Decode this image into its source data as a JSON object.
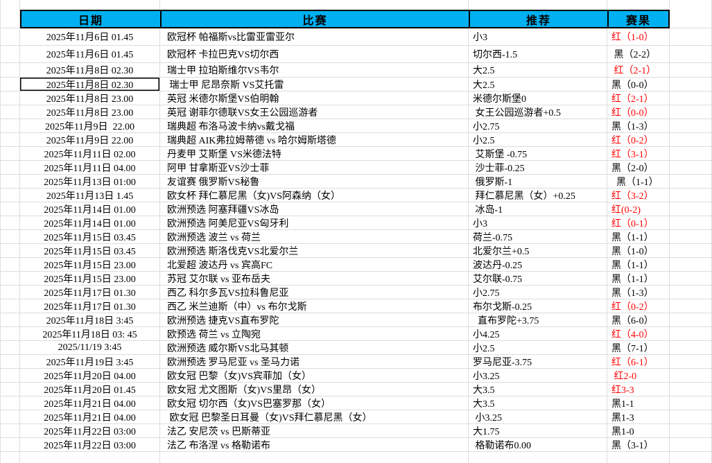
{
  "columns": [
    {
      "key": "date",
      "label": "日期"
    },
    {
      "key": "match",
      "label": "比赛"
    },
    {
      "key": "tip",
      "label": "推荐"
    },
    {
      "key": "result",
      "label": "赛果"
    }
  ],
  "colors": {
    "header_bg": "#00b0f0",
    "win_red": "#ff0000",
    "loss_black": "#000000",
    "gridline": "#dcdcdc"
  },
  "selected_cell": {
    "row": 4,
    "column": "date"
  },
  "rows": [
    {
      "date": "2025年11月6日 01.45",
      "match": "欧冠杯 帕福斯vs比雷亚雷亚尔",
      "tip": "小3",
      "result": "红（1-0）",
      "result_color": "red"
    },
    {
      "date": "2025年11月6日 01.45",
      "match": "欧冠杯 卡拉巴克VS切尔西",
      "tip": "切尔西-1.5",
      "result": " 黑（2-2）",
      "result_color": "black"
    },
    {
      "date": "2025年11月8日 02.30",
      "match": "瑞士甲 拉珀斯维尔VS韦尔",
      "tip": "大2.5",
      "result": " 红（2-1）",
      "result_color": "red"
    },
    {
      "date": "2025年11月8日 02.30",
      "match": " 瑞士甲 尼昂奈斯 VS艾托雷",
      "tip": "大2.5",
      "result": "黑（0-0）",
      "result_color": "black"
    },
    {
      "date": "2025年11月8日 23.00",
      "match": "英冠 米德尔斯堡VS伯明翰",
      "tip": "米德尔斯堡0",
      "result": "红（2-1）",
      "result_color": "red"
    },
    {
      "date": "2025年11月8日 23.00",
      "match": "英冠 谢菲尔德联VS女王公园巡游者",
      "tip": " 女王公园巡游者+0.5",
      "result": "红（0-0）",
      "result_color": "red"
    },
    {
      "date": "2025年11月9日  22.00",
      "match": "瑞典超 布洛马波卡纳vs戴戈福",
      "tip": "小2.75",
      "result": "黑（1-3）",
      "result_color": "black"
    },
    {
      "date": "2025年11月9日 22.00",
      "match": "瑞典超 AIK弗拉姆蒂德 vs 哈尔姆斯塔德",
      "tip": "小2.5",
      "result": "红（0-2）",
      "result_color": "red"
    },
    {
      "date": "2025年11月11日 02.00",
      "match": "丹麦甲 艾斯堡 VS米德法特",
      "tip": " 艾斯堡 -0.75",
      "result": "红（3-1）",
      "result_color": "red"
    },
    {
      "date": "2025年11月11日 04.00",
      "match": "阿甲 甘拿斯亚VS沙士菲",
      "tip": " 沙士菲-0.25",
      "result": "黑（2-0）",
      "result_color": "black"
    },
    {
      "date": "2025年11月13日 01:00",
      "match": "友谊赛 俄罗斯VS秘鲁",
      "tip": " 俄罗斯-1",
      "result": "  黑（1-1）",
      "result_color": "black"
    },
    {
      "date": "2025年11月13日 1.45",
      "match": "欧女杯 拜仁慕尼黑（女)VS阿森纳（女）",
      "tip": " 拜仁慕尼黑（女）+0.25",
      "result": "红（3-2）",
      "result_color": "red"
    },
    {
      "date": "2025年11月14日 01.00",
      "match": "欧洲预选 阿塞拜疆VS冰岛",
      "tip": " 冰岛-1",
      "result": "红(0-2)",
      "result_color": "red"
    },
    {
      "date": "2025年11月14日 01.00",
      "match": "欧洲预选 阿美尼亚VS匈牙利",
      "tip": "小3",
      "result": "红（0-1）",
      "result_color": "red"
    },
    {
      "date": "2025年11月15日 03.45",
      "match": "欧洲预选 波兰 vs 荷兰",
      "tip": "荷兰-0.75",
      "result": "黑（1-1）",
      "result_color": "black"
    },
    {
      "date": "2025年11月15日 03.45",
      "match": "欧洲预选 斯洛伐克VS北爱尔兰",
      "tip": "北爱尔兰+0.5",
      "result": "黑（1-0）",
      "result_color": "black"
    },
    {
      "date": "2025年11月15日 23.00",
      "match": "北爱超 波达丹 vs 宾高FC",
      "tip": "波达丹-0.25",
      "result": "黑（1-1）",
      "result_color": "black"
    },
    {
      "date": "2025年11月15日 23.00",
      "match": "苏冠 艾尔联 vs 亚布岳夫",
      "tip": "艾尔联-0.75",
      "result": "黑（1-1）",
      "result_color": "black"
    },
    {
      "date": "2025年11月17日 01.30",
      "match": "西乙 科尔多瓦VS拉科鲁尼亚",
      "tip": "小2.75",
      "result": "黑（1-3）",
      "result_color": "black"
    },
    {
      "date": "2025年11月17日 01.30",
      "match": "西乙 米兰迪斯（中）vs 布尔戈斯",
      "tip": "布尔戈斯-0.25",
      "result": "红（0-2）",
      "result_color": "red"
    },
    {
      "date": "2025年11月18日 3:45",
      "match": "欧洲预选 捷克VS直布罗陀",
      "tip": "  直布罗陀+3.75",
      "result": "黑（6-0）",
      "result_color": "black"
    },
    {
      "date": "2025年11月18日 03: 45",
      "match": "欧预选 荷兰 vs 立陶宛",
      "tip": "小4.25",
      "result": "红（4-0）",
      "result_color": "red"
    },
    {
      "date": "2025/11/19 3:45",
      "match": "欧洲预选 威尔斯VS北马其顿",
      "tip": "小2.5",
      "result": "黑（7-1）",
      "result_color": "black"
    },
    {
      "date": "2025年11月19日 3:45",
      "match": "欧洲预选 罗马尼亚 vs 圣马力诺",
      "tip": "罗马尼亚-3.75",
      "result": "红（6-1）",
      "result_color": "red"
    },
    {
      "date": "2025年11月20日 04.00",
      "match": "欧女冠 巴黎（女)VS宾菲加（女）",
      "tip": "小3.25",
      "result": " 红2-0",
      "result_color": "red"
    },
    {
      "date": "2025年11月20日 01.45",
      "match": "欧女冠 尤文图斯（女)VS里昂（女）",
      "tip": "大3.5",
      "result": "红3-3",
      "result_color": "red"
    },
    {
      "date": "2025年11月21日 04.00",
      "match": "欧女冠 切尔西（女)VS巴塞罗那（女）",
      "tip": "大3.5",
      "result": "黑1-1",
      "result_color": "black"
    },
    {
      "date": "2025年11月21日 04.00",
      "match": " 欧女冠 巴黎圣日耳曼（女)VS拜仁慕尼黑（女）",
      "tip": " 小3.25",
      "result": "黑1-3",
      "result_color": "black"
    },
    {
      "date": "2025年11月22日 03:00",
      "match": "法乙 安尼茨 vs 巴斯蒂亚",
      "tip": "大1.75",
      "result": "黑1-0",
      "result_color": "black"
    },
    {
      "date": "2025年11月22日 03:00",
      "match": "法乙 布洛涅 vs 格勒诺布",
      "tip": " 格勒诺布0.00",
      "result": "黑（3-1）",
      "result_color": "black"
    }
  ]
}
